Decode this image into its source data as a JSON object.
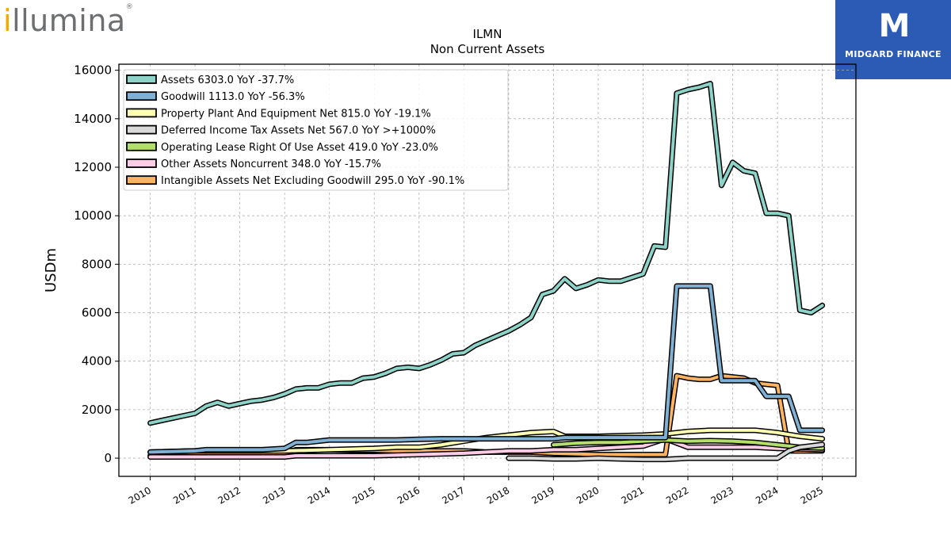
{
  "brand": {
    "logo_text": "illumina",
    "logo_accent": "i",
    "logo_rest": "llumina",
    "logo_mark": "®"
  },
  "partner": {
    "mark": "M",
    "name": "MIDGARD FINANCE",
    "bg": "#2b5bb4"
  },
  "chart_data": {
    "type": "line",
    "title": "ILMN",
    "subtitle": "Non Current  Assets",
    "ylabel": "USDm",
    "xlabel": "",
    "ylim": [
      -750,
      16250
    ],
    "xlim": [
      2009.3,
      2025.75
    ],
    "yticks": [
      0,
      2000,
      4000,
      6000,
      8000,
      10000,
      12000,
      14000,
      16000
    ],
    "xticks": [
      2010,
      2011,
      2012,
      2013,
      2014,
      2015,
      2016,
      2017,
      2018,
      2019,
      2020,
      2021,
      2022,
      2023,
      2024,
      2025
    ],
    "grid": true,
    "legend_position": "top-left",
    "series": [
      {
        "name": "Assets  6303.0 YoY -37.7%",
        "color": "#8dd3c7",
        "x": [
          2010.0,
          2010.25,
          2010.5,
          2010.75,
          2011.0,
          2011.25,
          2011.5,
          2011.75,
          2012.0,
          2012.25,
          2012.5,
          2012.75,
          2013.0,
          2013.25,
          2013.5,
          2013.75,
          2014.0,
          2014.25,
          2014.5,
          2014.75,
          2015.0,
          2015.25,
          2015.5,
          2015.75,
          2016.0,
          2016.25,
          2016.5,
          2016.75,
          2017.0,
          2017.25,
          2017.5,
          2017.75,
          2018.0,
          2018.25,
          2018.5,
          2018.75,
          2019.0,
          2019.25,
          2019.5,
          2019.75,
          2020.0,
          2020.25,
          2020.5,
          2020.75,
          2021.0,
          2021.25,
          2021.5,
          2021.75,
          2022.0,
          2022.25,
          2022.5,
          2022.75,
          2023.0,
          2023.25,
          2023.5,
          2023.75,
          2024.0,
          2024.25,
          2024.5,
          2024.75,
          2025.0
        ],
        "values": [
          1450,
          1550,
          1650,
          1750,
          1850,
          2150,
          2300,
          2150,
          2250,
          2350,
          2400,
          2500,
          2650,
          2850,
          2900,
          2900,
          3050,
          3100,
          3100,
          3300,
          3350,
          3500,
          3700,
          3750,
          3700,
          3850,
          4050,
          4300,
          4350,
          4650,
          4850,
          5050,
          5250,
          5500,
          5800,
          6750,
          6900,
          7400,
          7000,
          7150,
          7350,
          7300,
          7300,
          7450,
          7600,
          8750,
          8700,
          15050,
          15200,
          15300,
          15450,
          11250,
          12200,
          11850,
          11750,
          10100,
          10100,
          10000,
          6100,
          6000,
          6300
        ]
      },
      {
        "name": "Goodwill  1113.0 YoY -56.3%",
        "color": "#80b1d3",
        "x": [
          2010.0,
          2011.0,
          2011.25,
          2012.0,
          2012.5,
          2013.0,
          2013.25,
          2013.5,
          2014.0,
          2014.5,
          2015.0,
          2015.5,
          2016.0,
          2016.5,
          2017.0,
          2017.5,
          2018.0,
          2018.5,
          2019.0,
          2019.25,
          2020.0,
          2020.5,
          2021.0,
          2021.5,
          2021.75,
          2022.0,
          2022.5,
          2022.75,
          2023.0,
          2023.5,
          2023.75,
          2024.0,
          2024.25,
          2024.5,
          2025.0
        ],
        "values": [
          250,
          300,
          350,
          350,
          350,
          400,
          650,
          650,
          750,
          750,
          750,
          750,
          780,
          800,
          800,
          800,
          800,
          800,
          800,
          850,
          850,
          850,
          850,
          850,
          7100,
          7100,
          7100,
          3200,
          3200,
          3200,
          2550,
          2550,
          2550,
          1150,
          1150
        ]
      },
      {
        "name": "Property Plant And Equipment Net  815.0 YoY -19.1%",
        "color": "#ffffb3",
        "x": [
          2010.0,
          2011.0,
          2012.0,
          2013.0,
          2014.0,
          2015.0,
          2015.5,
          2016.0,
          2016.5,
          2017.0,
          2017.5,
          2018.0,
          2018.5,
          2019.0,
          2019.25,
          2020.0,
          2021.0,
          2021.5,
          2022.0,
          2022.5,
          2023.0,
          2023.5,
          2024.0,
          2024.5,
          2025.0
        ],
        "values": [
          250,
          300,
          300,
          300,
          350,
          400,
          450,
          450,
          550,
          700,
          850,
          950,
          1050,
          1100,
          900,
          900,
          950,
          1000,
          1100,
          1150,
          1150,
          1150,
          1050,
          900,
          800
        ]
      },
      {
        "name": "Deferred Income Tax Assets Net  567.0 YoY >+1000%",
        "color": "#d9d9d9",
        "x": [
          2018.0,
          2018.5,
          2019.0,
          2019.5,
          2020.0,
          2020.5,
          2021.0,
          2021.5,
          2022.0,
          2022.5,
          2023.0,
          2023.5,
          2024.0,
          2024.25,
          2024.5,
          2025.0
        ],
        "values": [
          0,
          0,
          -30,
          -30,
          0,
          -30,
          -50,
          -50,
          0,
          0,
          0,
          0,
          0,
          300,
          450,
          560
        ]
      },
      {
        "name": "Operating Lease Right Of Use Asset  419.0 YoY -23.0%",
        "color": "#b3de69",
        "x": [
          2019.0,
          2019.5,
          2020.0,
          2020.5,
          2021.0,
          2021.5,
          2022.0,
          2022.5,
          2023.0,
          2023.5,
          2024.0,
          2024.5,
          2025.0
        ],
        "values": [
          550,
          620,
          650,
          650,
          700,
          750,
          700,
          720,
          700,
          650,
          550,
          450,
          420
        ]
      },
      {
        "name": "Other Assets Noncurrent  348.0 YoY -15.7%",
        "color": "#fccde5",
        "x": [
          2010.0,
          2011.0,
          2012.0,
          2013.0,
          2013.25,
          2014.0,
          2014.5,
          2015.0,
          2016.0,
          2017.0,
          2017.5,
          2018.0,
          2018.5,
          2019.0,
          2019.5,
          2020.0,
          2020.5,
          2021.0,
          2021.5,
          2022.0,
          2022.5,
          2023.0,
          2023.5,
          2024.0,
          2024.5,
          2025.0
        ],
        "values": [
          50,
          50,
          50,
          50,
          100,
          100,
          100,
          100,
          150,
          200,
          250,
          300,
          300,
          350,
          350,
          400,
          450,
          500,
          800,
          450,
          450,
          450,
          450,
          400,
          380,
          350
        ]
      },
      {
        "name": "Intangible Assets Net Excluding Goodwill  295.0 YoY -90.1%",
        "color": "#fdb462",
        "x": [
          2010.0,
          2010.5,
          2011.0,
          2011.25,
          2012.0,
          2012.5,
          2013.0,
          2013.25,
          2013.5,
          2014.0,
          2014.5,
          2015.0,
          2015.5,
          2016.0,
          2016.5,
          2017.0,
          2017.5,
          2018.0,
          2018.5,
          2019.0,
          2019.5,
          2020.0,
          2020.5,
          2021.0,
          2021.5,
          2021.75,
          2022.0,
          2022.25,
          2022.5,
          2022.75,
          2023.0,
          2023.25,
          2023.5,
          2023.75,
          2024.0,
          2024.25,
          2024.5,
          2025.0
        ],
        "values": [
          100,
          120,
          150,
          200,
          200,
          200,
          200,
          350,
          350,
          350,
          330,
          330,
          300,
          300,
          300,
          300,
          250,
          250,
          250,
          200,
          180,
          150,
          150,
          150,
          150,
          3400,
          3300,
          3250,
          3250,
          3400,
          3350,
          3300,
          3100,
          3050,
          3000,
          300,
          300,
          300
        ]
      }
    ]
  }
}
